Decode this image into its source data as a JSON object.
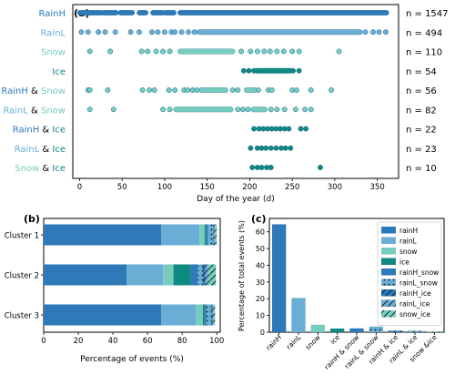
{
  "colors": {
    "rainH": "#2e7ab8",
    "rainL": "#6aaed6",
    "snow": "#76cdbf",
    "ice": "#0e8a80",
    "dot_edge": "#1d5f8a",
    "axis": "#000000"
  },
  "chart_data": [
    {
      "panel": "(a)",
      "type": "scatter",
      "xlabel": "Day of the year (d)",
      "xlim": [
        -8,
        375
      ],
      "xticks": [
        0,
        50,
        100,
        150,
        200,
        250,
        300,
        350
      ],
      "rows": [
        {
          "label": [
            {
              "t": "RainH",
              "c": "rainH"
            }
          ],
          "count": "n = 1547",
          "color": "rainH",
          "segments": [
            [
              0,
              25
            ],
            [
              28,
              43
            ],
            [
              48,
              62
            ],
            [
              70,
              78
            ],
            [
              86,
              97
            ],
            [
              100,
              111
            ],
            [
              118,
              361
            ]
          ],
          "points": []
        },
        {
          "label": [
            {
              "t": "RainL",
              "c": "rainL"
            }
          ],
          "count": "n = 494",
          "color": "rainL",
          "segments": [
            [
              140,
              330
            ]
          ],
          "points": [
            2,
            10,
            22,
            30,
            42,
            60,
            70,
            85,
            92,
            100,
            108,
            112,
            120,
            128,
            135,
            336,
            345,
            352,
            360
          ]
        },
        {
          "label": [
            {
              "t": "Snow",
              "c": "snow"
            }
          ],
          "count": "n = 110",
          "color": "snow",
          "segments": [
            [
              118,
              180
            ]
          ],
          "points": [
            12,
            36,
            73,
            80,
            90,
            98,
            106,
            190,
            201,
            209,
            217,
            224,
            232,
            240,
            250,
            258,
            305
          ]
        },
        {
          "label": [
            {
              "t": "Ice",
              "c": "ice"
            }
          ],
          "count": "n = 54",
          "color": "ice",
          "segments": [
            [
              208,
              248
            ]
          ],
          "points": [
            193,
            199,
            205,
            251,
            258
          ]
        },
        {
          "label": [
            {
              "t": "RainH",
              "c": "rainH"
            },
            {
              "t": " & ",
              "c": "axis"
            },
            {
              "t": "Snow",
              "c": "snow"
            }
          ],
          "count": "n = 56",
          "color": "snow",
          "segments": [
            [
              143,
              172
            ],
            [
              196,
              206
            ]
          ],
          "points": [
            10,
            12,
            33,
            74,
            82,
            88,
            105,
            112,
            123,
            127,
            133,
            138,
            180,
            186,
            210,
            222,
            226,
            250,
            255,
            272,
            296
          ]
        },
        {
          "label": [
            {
              "t": "RainL",
              "c": "rainL"
            },
            {
              "t": " & ",
              "c": "axis"
            },
            {
              "t": "Snow",
              "c": "snow"
            }
          ],
          "count": "n = 82",
          "color": "snow",
          "segments": [
            [
              113,
              178
            ],
            [
              204,
              218
            ]
          ],
          "points": [
            12,
            40,
            98,
            106,
            186,
            192,
            198,
            225,
            232,
            241,
            254,
            265,
            272
          ]
        },
        {
          "label": [
            {
              "t": "RainH",
              "c": "rainH"
            },
            {
              "t": " & ",
              "c": "axis"
            },
            {
              "t": "Ice",
              "c": "ice"
            }
          ],
          "count": "n = 22",
          "color": "ice",
          "segments": [],
          "points": [
            205,
            211,
            216,
            221,
            226,
            231,
            236,
            241,
            246,
            260,
            266
          ]
        },
        {
          "label": [
            {
              "t": "RainL",
              "c": "rainL"
            },
            {
              "t": " & ",
              "c": "axis"
            },
            {
              "t": "Ice",
              "c": "ice"
            }
          ],
          "count": "n = 23",
          "color": "ice",
          "segments": [],
          "points": [
            201,
            209,
            214,
            219,
            225,
            231,
            237,
            242,
            248
          ]
        },
        {
          "label": [
            {
              "t": "Snow",
              "c": "snow"
            },
            {
              "t": " & ",
              "c": "axis"
            },
            {
              "t": "Ice",
              "c": "ice"
            }
          ],
          "count": "n = 10",
          "color": "ice",
          "segments": [],
          "points": [
            203,
            209,
            214,
            220,
            225,
            283
          ]
        }
      ]
    },
    {
      "panel": "(b)",
      "type": "bar",
      "orientation": "horizontal",
      "stacked": true,
      "xlabel": "Percentage of events (%)",
      "xlim": [
        0,
        102
      ],
      "xticks": [
        0,
        20,
        40,
        60,
        80,
        100
      ],
      "categories": [
        "Cluster 1",
        "Cluster 2",
        "Cluster 3"
      ],
      "series": [
        {
          "key": "rainH",
          "color": "rainH",
          "pattern": "none",
          "values": [
            68,
            48,
            68
          ]
        },
        {
          "key": "rainL",
          "color": "rainL",
          "pattern": "none",
          "values": [
            22,
            21,
            20
          ]
        },
        {
          "key": "snow",
          "color": "snow",
          "pattern": "none",
          "values": [
            3,
            6,
            4
          ]
        },
        {
          "key": "ice",
          "color": "ice",
          "pattern": "none",
          "values": [
            1,
            10,
            1
          ]
        },
        {
          "key": "rainH_snow",
          "color": "rainH",
          "pattern": "none",
          "values": [
            1,
            4,
            1
          ]
        },
        {
          "key": "rainL_snow",
          "color": "rainL",
          "pattern": "dots",
          "values": [
            3,
            3,
            3
          ]
        },
        {
          "key": "rainH_ice",
          "color": "rainH",
          "pattern": "slash",
          "values": [
            0.5,
            1.5,
            0.5
          ]
        },
        {
          "key": "rainL_ice",
          "color": "rainL",
          "pattern": "slash",
          "values": [
            0.5,
            1.5,
            0.5
          ]
        },
        {
          "key": "snow_ice",
          "color": "snow",
          "pattern": "slash",
          "values": [
            1,
            4.5,
            1
          ]
        }
      ]
    },
    {
      "panel": "(c)",
      "type": "bar",
      "ylabel": "Percentage of total events (%)",
      "ylim": [
        0,
        68
      ],
      "yticks": [
        0,
        10,
        20,
        30,
        40,
        50,
        60
      ],
      "categories": [
        "rainH",
        "rainL",
        "snow",
        "ice",
        "rainH & snow",
        "rainL & snow",
        "rainH & ice",
        "rainL & ice",
        "snow &ice"
      ],
      "values": [
        64.5,
        20.5,
        4.5,
        2.2,
        2.3,
        3.4,
        0.9,
        0.9,
        0.4
      ],
      "bar_colors": [
        "rainH",
        "rainL",
        "snow",
        "ice",
        "rainH",
        "rainL",
        "rainH",
        "rainL",
        "snow"
      ],
      "bar_patterns": [
        "none",
        "none",
        "none",
        "none",
        "none",
        "dots",
        "slash",
        "slash",
        "slash"
      ],
      "legend": {
        "position": "top-right",
        "entries": [
          {
            "label": "rainH",
            "color": "rainH",
            "pattern": "none"
          },
          {
            "label": "rainL",
            "color": "rainL",
            "pattern": "none"
          },
          {
            "label": "snow",
            "color": "snow",
            "pattern": "none"
          },
          {
            "label": "ice",
            "color": "ice",
            "pattern": "none"
          },
          {
            "label": "rainH_snow",
            "color": "rainH",
            "pattern": "none"
          },
          {
            "label": "rainL_snow",
            "color": "rainL",
            "pattern": "dots"
          },
          {
            "label": "rainH_ice",
            "color": "rainH",
            "pattern": "slash"
          },
          {
            "label": "rainL_ice",
            "color": "rainL",
            "pattern": "slash"
          },
          {
            "label": "snow_ice",
            "color": "snow",
            "pattern": "slash"
          }
        ]
      }
    }
  ]
}
